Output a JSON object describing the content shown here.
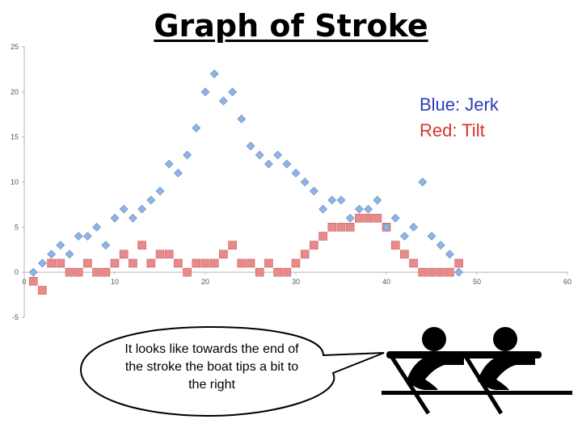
{
  "title": "Graph of Stroke",
  "legend": {
    "blue_label": "Blue: Jerk",
    "red_label": "Red: Tilt"
  },
  "colors": {
    "jerk": "#8fb4e3",
    "jerk_stroke": "#5f86c0",
    "tilt": "#e98a8a",
    "tilt_stroke": "#c95a5a",
    "legend_blue": "#2a3db8",
    "legend_red": "#d9342a"
  },
  "callout": {
    "text": "It looks like towards the end of the stroke the boat tips a bit to the right"
  },
  "icons": [
    "rowing-pair-icon"
  ],
  "chart_data": {
    "type": "scatter",
    "xlim": [
      0,
      60
    ],
    "ylim": [
      -5,
      25
    ],
    "x_ticks": [
      "0",
      "10",
      "20",
      "30",
      "40",
      "50",
      "60"
    ],
    "y_ticks": [
      "-5",
      "0",
      "5",
      "10",
      "15",
      "20",
      "25"
    ],
    "series": [
      {
        "name": "Blue: Jerk",
        "marker": "diamond",
        "x": [
          1,
          2,
          3,
          4,
          5,
          6,
          7,
          8,
          9,
          10,
          11,
          12,
          13,
          14,
          15,
          16,
          17,
          18,
          19,
          20,
          21,
          22,
          23,
          24,
          25,
          26,
          27,
          28,
          29,
          30,
          31,
          32,
          33,
          34,
          35,
          36,
          37,
          38,
          39,
          40,
          41,
          42,
          43,
          44,
          45,
          46,
          47,
          48
        ],
        "y": [
          0,
          1,
          2,
          3,
          2,
          4,
          4,
          5,
          3,
          6,
          7,
          6,
          7,
          8,
          9,
          12,
          11,
          13,
          16,
          20,
          22,
          19,
          20,
          17,
          14,
          13,
          12,
          13,
          12,
          11,
          10,
          9,
          7,
          8,
          8,
          6,
          7,
          7,
          8,
          5,
          6,
          4,
          5,
          10,
          4,
          3,
          2,
          0
        ]
      },
      {
        "name": "Red: Tilt",
        "marker": "square",
        "x": [
          1,
          2,
          3,
          4,
          5,
          6,
          7,
          8,
          9,
          10,
          11,
          12,
          13,
          14,
          15,
          16,
          17,
          18,
          19,
          20,
          21,
          22,
          23,
          24,
          25,
          26,
          27,
          28,
          29,
          30,
          31,
          32,
          33,
          34,
          35,
          36,
          37,
          38,
          39,
          40,
          41,
          42,
          43,
          44,
          45,
          46,
          47,
          48
        ],
        "y": [
          -1,
          -2,
          1,
          1,
          0,
          0,
          1,
          0,
          0,
          1,
          2,
          1,
          3,
          1,
          2,
          2,
          1,
          0,
          1,
          1,
          1,
          2,
          3,
          1,
          1,
          0,
          1,
          0,
          0,
          1,
          2,
          3,
          4,
          5,
          5,
          5,
          6,
          6,
          6,
          5,
          3,
          2,
          1,
          0,
          0,
          0,
          0,
          1
        ]
      }
    ]
  }
}
